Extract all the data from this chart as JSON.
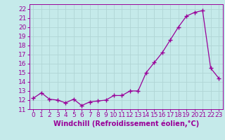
{
  "x": [
    0,
    1,
    2,
    3,
    4,
    5,
    6,
    7,
    8,
    9,
    10,
    11,
    12,
    13,
    14,
    15,
    16,
    17,
    18,
    19,
    20,
    21,
    22,
    23
  ],
  "y": [
    12.2,
    12.8,
    12.1,
    12.0,
    11.7,
    12.1,
    11.4,
    11.8,
    11.9,
    12.0,
    12.5,
    12.5,
    13.0,
    13.0,
    15.0,
    16.1,
    17.2,
    18.6,
    20.0,
    21.2,
    21.6,
    21.8,
    15.5,
    14.4
  ],
  "line_color": "#990099",
  "marker": "+",
  "marker_size": 4,
  "marker_linewidth": 1.0,
  "line_width": 0.9,
  "background_color": "#c5eaea",
  "grid_color": "#b0d5d5",
  "xlabel": "Windchill (Refroidissement éolien,°C)",
  "xlabel_fontsize": 7,
  "ylabel_ticks": [
    11,
    12,
    13,
    14,
    15,
    16,
    17,
    18,
    19,
    20,
    21,
    22
  ],
  "xlim": [
    -0.5,
    23.5
  ],
  "ylim": [
    11,
    22.5
  ],
  "tick_fontsize": 6.5,
  "title": ""
}
